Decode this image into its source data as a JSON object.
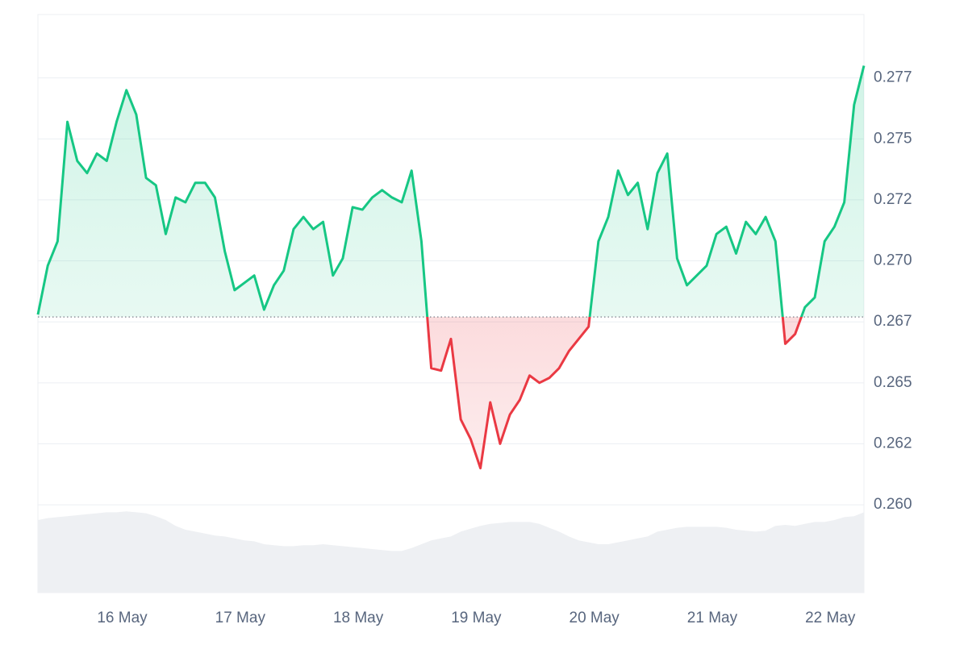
{
  "chart_data": {
    "type": "line",
    "categories": [
      null,
      null,
      null,
      null,
      null,
      null,
      null,
      null,
      "16 May",
      null,
      null,
      null,
      null,
      null,
      null,
      null,
      null,
      null,
      null,
      null,
      "17 May",
      null,
      null,
      null,
      null,
      null,
      null,
      null,
      null,
      null,
      null,
      null,
      "18 May",
      null,
      null,
      null,
      null,
      null,
      null,
      null,
      null,
      null,
      null,
      null,
      "19 May",
      null,
      null,
      null,
      null,
      null,
      null,
      null,
      null,
      null,
      null,
      null,
      "20 May",
      null,
      null,
      null,
      null,
      null,
      null,
      null,
      null,
      null,
      null,
      null,
      "21 May",
      null,
      null,
      null,
      null,
      null,
      null,
      null,
      null,
      null,
      null,
      null,
      "22 May",
      null,
      null,
      null,
      null
    ],
    "values": [
      0.2678,
      0.2698,
      0.2708,
      0.2757,
      0.2741,
      0.2736,
      0.2744,
      0.2741,
      0.2757,
      0.277,
      0.276,
      0.2734,
      0.2731,
      0.2711,
      0.2726,
      0.2724,
      0.2732,
      0.2732,
      0.2726,
      0.2704,
      0.2688,
      0.2691,
      0.2694,
      0.268,
      0.269,
      0.2696,
      0.2713,
      0.2718,
      0.2713,
      0.2716,
      0.2694,
      0.2701,
      0.2722,
      0.2721,
      0.2726,
      0.2729,
      0.2726,
      0.2724,
      0.2737,
      0.2708,
      0.2656,
      0.2655,
      0.2668,
      0.2635,
      0.2627,
      0.2615,
      0.2642,
      0.2625,
      0.2637,
      0.2643,
      0.2653,
      0.265,
      0.2652,
      0.2656,
      0.2663,
      0.2668,
      0.2673,
      0.2708,
      0.2718,
      0.2737,
      0.2727,
      0.2732,
      0.2713,
      0.2736,
      0.2744,
      0.2701,
      0.269,
      0.2694,
      0.2698,
      0.2711,
      0.2714,
      0.2703,
      0.2716,
      0.2711,
      0.2718,
      0.2708,
      0.2666,
      0.267,
      0.2681,
      0.2685,
      0.2708,
      0.2714,
      0.2724,
      0.2764,
      0.278
    ],
    "baseline": 0.2677,
    "up_color": "#16c784",
    "down_color": "#ea3943",
    "ylim": [
      0.2564,
      0.2801
    ],
    "yticks": [
      {
        "value": 0.26,
        "label": "0.260"
      },
      {
        "value": 0.2625,
        "label": "0.262"
      },
      {
        "value": 0.265,
        "label": "0.265"
      },
      {
        "value": 0.2675,
        "label": "0.267"
      },
      {
        "value": 0.27,
        "label": "0.270"
      },
      {
        "value": 0.2725,
        "label": "0.272"
      },
      {
        "value": 0.275,
        "label": "0.275"
      },
      {
        "value": 0.2775,
        "label": "0.277"
      }
    ],
    "grid": true,
    "volume": {
      "color": "#eef0f3",
      "ylim": [
        0,
        100
      ],
      "values": [
        75,
        77,
        78,
        79,
        80,
        81,
        82,
        83,
        83,
        84,
        83,
        82,
        79,
        75,
        69,
        65,
        63,
        61,
        59,
        58,
        56,
        54,
        53,
        50,
        49,
        48,
        48,
        49,
        49,
        50,
        49,
        48,
        47,
        46,
        45,
        44,
        43,
        43,
        46,
        50,
        54,
        56,
        58,
        63,
        66,
        69,
        71,
        72,
        73,
        73,
        73,
        71,
        67,
        63,
        58,
        54,
        52,
        50,
        50,
        52,
        54,
        56,
        58,
        63,
        65,
        67,
        68,
        68,
        68,
        68,
        67,
        65,
        64,
        63,
        64,
        69,
        70,
        69,
        71,
        73,
        73,
        75,
        78,
        79,
        83
      ]
    }
  }
}
